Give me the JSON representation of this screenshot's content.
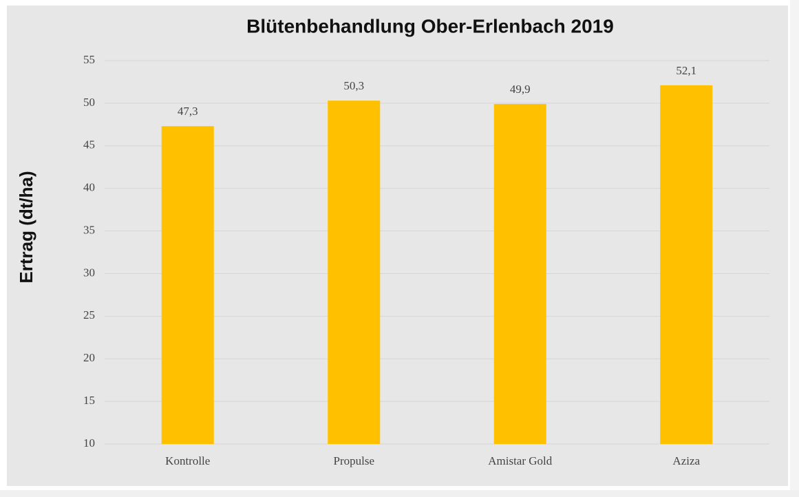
{
  "chart_data": {
    "type": "bar",
    "title": "Blütenbehandlung Ober-Erlenbach 2019",
    "y_label": "Ertrag (dt/ha)",
    "categories": [
      "Kontrolle",
      "Propulse",
      "Amistar Gold",
      "Aziza"
    ],
    "values": [
      47.3,
      50.3,
      49.9,
      52.1
    ],
    "value_labels": [
      "47,3",
      "50,3",
      "49,9",
      "52,1"
    ],
    "color": "#ffc000",
    "ylim": [
      10,
      55
    ],
    "yticks": [
      10,
      15,
      20,
      25,
      30,
      35,
      40,
      45,
      50,
      55
    ],
    "grid": true
  }
}
